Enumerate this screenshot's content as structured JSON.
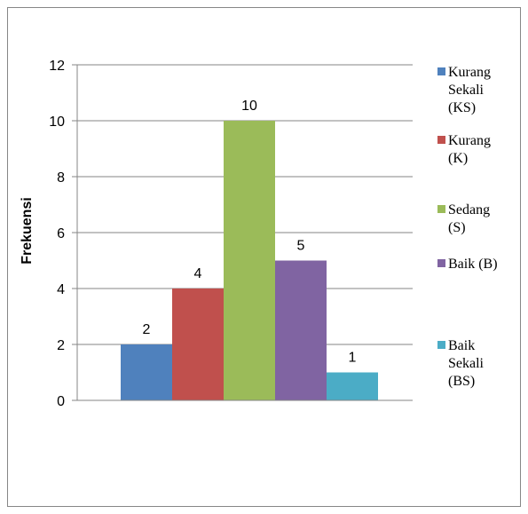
{
  "chart_data": {
    "type": "bar",
    "title": "",
    "xlabel": "",
    "ylabel": "Frekuensi",
    "ylim": [
      0,
      12
    ],
    "yticks": [
      0,
      2,
      4,
      6,
      8,
      10,
      12
    ],
    "grid": true,
    "legend_position": "right",
    "series": [
      {
        "name": "Kurang Sekali (KS)",
        "values": [
          2
        ],
        "color": "#4F81BD",
        "legend_lines": [
          "Kurang",
          "Sekali",
          "(KS)"
        ]
      },
      {
        "name": "Kurang (K)",
        "values": [
          4
        ],
        "color": "#C0504D",
        "legend_lines": [
          "Kurang",
          "(K)"
        ]
      },
      {
        "name": "Sedang (S)",
        "values": [
          10
        ],
        "color": "#9BBB59",
        "legend_lines": [
          "Sedang",
          "(S)"
        ]
      },
      {
        "name": "Baik (B)",
        "values": [
          5
        ],
        "color": "#8064A2",
        "legend_lines": [
          "Baik (B)"
        ]
      },
      {
        "name": "Baik Sekali (BS)",
        "values": [
          1
        ],
        "color": "#4BACC6",
        "legend_lines": [
          "Baik",
          "Sekali",
          "(BS)"
        ]
      }
    ],
    "gridline_color": "#868686",
    "axis_color": "#868686"
  }
}
